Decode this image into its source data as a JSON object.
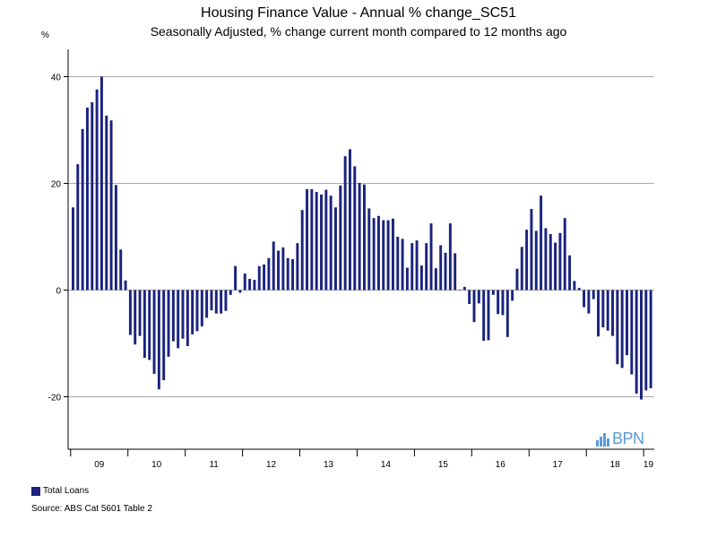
{
  "title": "Housing Finance Value - Annual % change_SC51",
  "subtitle": "Seasonally Adjusted, % change current month compared to 12 months ago",
  "unit_label": "%",
  "legend_label": "Total Loans",
  "source": "Source: ABS Cat 5601 Table 2",
  "logo_text": "BPN",
  "colors": {
    "bar": "#1a237e",
    "grid": "#aaaaaa",
    "axis": "#000000",
    "logo": "#5b9bd5"
  },
  "chart_data": {
    "type": "bar",
    "ylim": [
      -30,
      45
    ],
    "yticks": [
      -20,
      0,
      20,
      40
    ],
    "grid": true,
    "legend_position": "bottom-left",
    "year_labels": [
      "09",
      "10",
      "11",
      "12",
      "13",
      "14",
      "15",
      "16",
      "17",
      "18",
      "19"
    ],
    "series": [
      {
        "name": "Total Loans",
        "values": [
          15.5,
          23.6,
          30.2,
          34.2,
          35.2,
          37.6,
          40.0,
          32.7,
          31.8,
          19.7,
          7.6,
          1.8,
          -8.4,
          -10.2,
          -8.6,
          -12.7,
          -13.1,
          -15.7,
          -18.6,
          -16.9,
          -12.5,
          -9.6,
          -10.9,
          -9.1,
          -10.5,
          -8.3,
          -7.7,
          -6.8,
          -5.2,
          -3.8,
          -4.4,
          -4.4,
          -3.9,
          -0.9,
          4.5,
          -0.5,
          3.1,
          2.1,
          1.9,
          4.5,
          4.8,
          6.0,
          9.1,
          7.4,
          8.0,
          6.0,
          5.8,
          8.8,
          15.0,
          18.9,
          18.9,
          18.4,
          17.9,
          18.8,
          17.7,
          15.5,
          19.6,
          25.1,
          26.4,
          23.2,
          20.1,
          19.8,
          15.3,
          13.5,
          13.9,
          13.1,
          13.1,
          13.4,
          10.0,
          9.6,
          4.2,
          8.8,
          9.3,
          4.6,
          8.8,
          12.5,
          4.1,
          8.4,
          7.0,
          12.5,
          6.9,
          0.0,
          0.6,
          -2.6,
          -6.0,
          -2.5,
          -9.5,
          -9.4,
          -0.9,
          -4.5,
          -4.7,
          -8.8,
          -2.0,
          4.0,
          8.1,
          11.3,
          15.2,
          11.1,
          17.7,
          11.6,
          10.5,
          8.9,
          10.7,
          13.5,
          6.5,
          1.7,
          0.4,
          -3.2,
          -4.4,
          -1.7,
          -8.7,
          -7.0,
          -7.6,
          -8.6,
          -13.9,
          -14.6,
          -12.2,
          -15.8,
          -19.4,
          -20.5,
          -18.8,
          -18.4
        ]
      }
    ]
  }
}
